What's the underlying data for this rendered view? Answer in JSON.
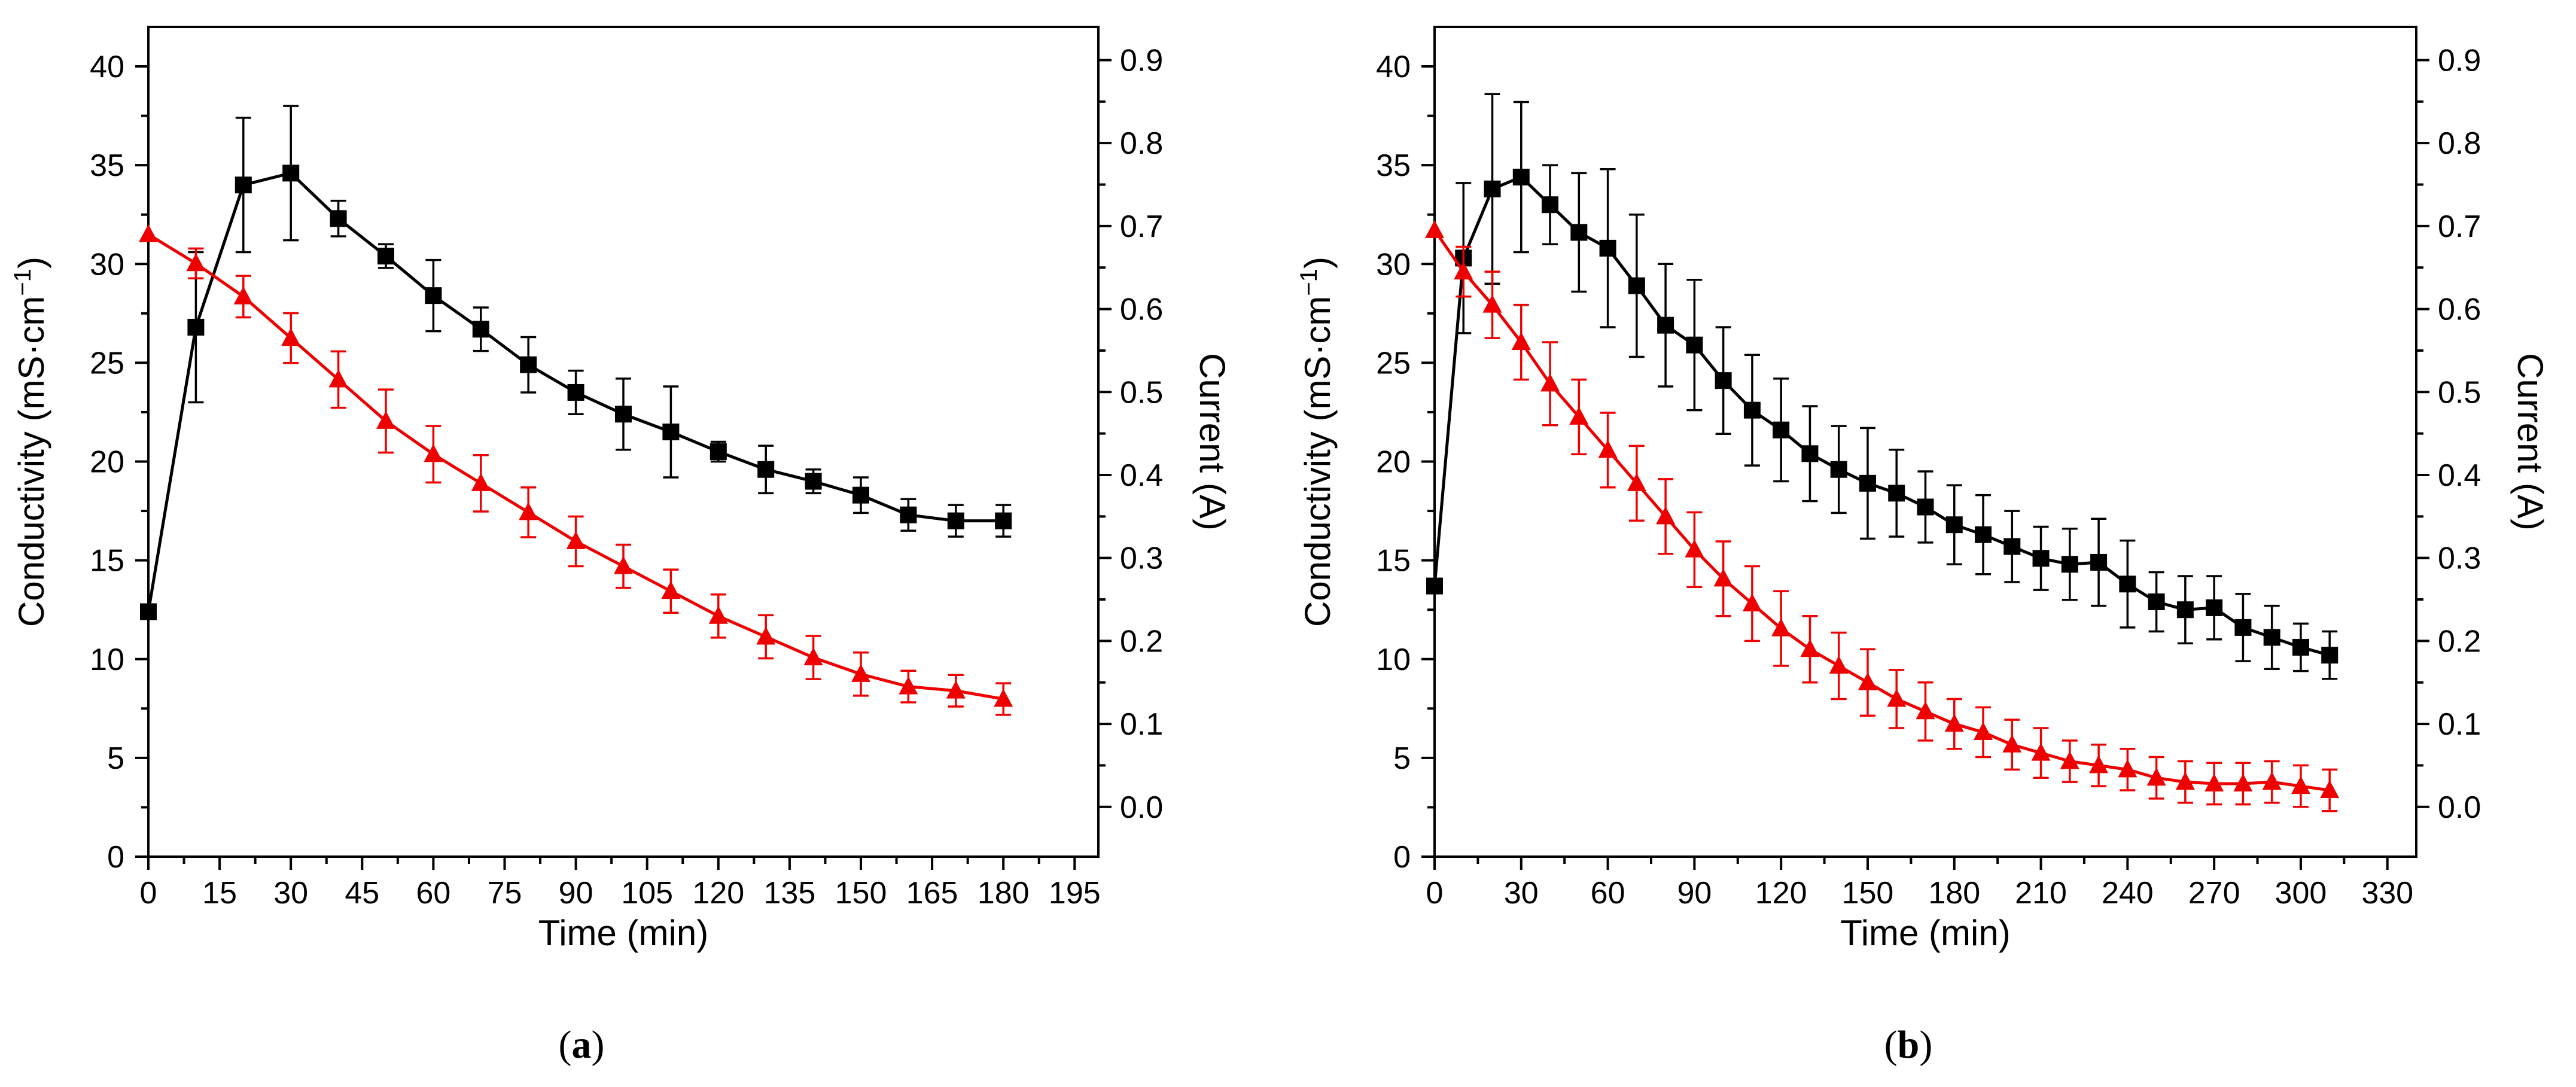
{
  "chart_data": [
    {
      "panel_label": "a",
      "type": "line",
      "xlabel": "Time (min)",
      "ylabel_left": "Conductivity (mS·cm",
      "ylabel_left_sup": "−1",
      "ylabel_left_end": ")",
      "ylabel_right": "Current (A)",
      "xlim": [
        0,
        200
      ],
      "xticks": [
        0,
        15,
        30,
        45,
        60,
        75,
        90,
        105,
        120,
        135,
        150,
        165,
        180,
        195
      ],
      "ylim_left": [
        0,
        42
      ],
      "yticks_left": [
        0,
        5,
        10,
        15,
        20,
        25,
        30,
        35,
        40
      ],
      "ylim_right": [
        -0.06,
        0.94
      ],
      "yticks_right": [
        0.0,
        0.1,
        0.2,
        0.3,
        0.4,
        0.5,
        0.6,
        0.7,
        0.8,
        0.9
      ],
      "series": [
        {
          "name": "Conductivity",
          "axis": "left",
          "color": "#000000",
          "marker": "square",
          "x": [
            0,
            10,
            20,
            30,
            40,
            50,
            60,
            70,
            80,
            90,
            100,
            110,
            120,
            130,
            140,
            150,
            160,
            170,
            180
          ],
          "y": [
            12.4,
            26.8,
            34.0,
            34.6,
            32.3,
            30.4,
            28.4,
            26.7,
            24.9,
            23.5,
            22.4,
            21.5,
            20.5,
            19.6,
            19.0,
            18.3,
            17.3,
            17.0,
            17.0
          ],
          "err": [
            0.0,
            3.8,
            3.4,
            3.4,
            0.9,
            0.6,
            1.8,
            1.1,
            1.4,
            1.1,
            1.8,
            2.3,
            0.5,
            1.2,
            0.6,
            0.9,
            0.8,
            0.8,
            0.8
          ]
        },
        {
          "name": "Current",
          "axis": "right",
          "color": "#ee0000",
          "marker": "triangle",
          "x": [
            0,
            10,
            20,
            30,
            40,
            50,
            60,
            70,
            80,
            90,
            100,
            110,
            120,
            130,
            140,
            150,
            160,
            170,
            180
          ],
          "y": [
            0.69,
            0.655,
            0.615,
            0.565,
            0.515,
            0.465,
            0.425,
            0.39,
            0.355,
            0.32,
            0.29,
            0.26,
            0.23,
            0.205,
            0.18,
            0.16,
            0.145,
            0.14,
            0.13
          ],
          "err": [
            0.0,
            0.018,
            0.025,
            0.03,
            0.034,
            0.038,
            0.034,
            0.034,
            0.03,
            0.03,
            0.026,
            0.026,
            0.026,
            0.026,
            0.026,
            0.026,
            0.019,
            0.019,
            0.019
          ]
        }
      ]
    },
    {
      "panel_label": "b",
      "type": "line",
      "xlabel": "Time (min)",
      "ylabel_left": "Conductivity (mS·cm",
      "ylabel_left_sup": "−1",
      "ylabel_left_end": ")",
      "ylabel_right": "Current (A)",
      "xlim": [
        0,
        340
      ],
      "xticks": [
        0,
        30,
        60,
        90,
        120,
        150,
        180,
        210,
        240,
        270,
        300,
        330
      ],
      "ylim_left": [
        0,
        42
      ],
      "yticks_left": [
        0,
        5,
        10,
        15,
        20,
        25,
        30,
        35,
        40
      ],
      "ylim_right": [
        -0.06,
        0.94
      ],
      "yticks_right": [
        0.0,
        0.1,
        0.2,
        0.3,
        0.4,
        0.5,
        0.6,
        0.7,
        0.8,
        0.9
      ],
      "series": [
        {
          "name": "Conductivity",
          "axis": "left",
          "color": "#000000",
          "marker": "square",
          "x": [
            0,
            10,
            20,
            30,
            40,
            50,
            60,
            70,
            80,
            90,
            100,
            110,
            120,
            130,
            140,
            150,
            160,
            170,
            180,
            190,
            200,
            210,
            220,
            230,
            240,
            250,
            260,
            270,
            280,
            290,
            300,
            310
          ],
          "y": [
            13.7,
            30.3,
            33.8,
            34.4,
            33.0,
            31.6,
            30.8,
            28.9,
            26.9,
            25.9,
            24.1,
            22.6,
            21.6,
            20.4,
            19.6,
            18.9,
            18.4,
            17.7,
            16.8,
            16.3,
            15.7,
            15.1,
            14.8,
            14.9,
            13.8,
            12.9,
            12.5,
            12.6,
            11.6,
            11.1,
            10.6,
            10.2
          ],
          "err": [
            0.0,
            3.8,
            4.8,
            3.8,
            2.0,
            3.0,
            4.0,
            3.6,
            3.1,
            3.3,
            2.7,
            2.8,
            2.6,
            2.4,
            2.2,
            2.8,
            2.2,
            1.8,
            2.0,
            2.0,
            1.8,
            1.6,
            1.8,
            2.2,
            2.2,
            1.5,
            1.7,
            1.6,
            1.7,
            1.6,
            1.2,
            1.2
          ]
        },
        {
          "name": "Current",
          "axis": "right",
          "color": "#ee0000",
          "marker": "triangle",
          "x": [
            0,
            10,
            20,
            30,
            40,
            50,
            60,
            70,
            80,
            90,
            100,
            110,
            120,
            130,
            140,
            150,
            160,
            170,
            180,
            190,
            200,
            210,
            220,
            230,
            240,
            250,
            260,
            270,
            280,
            290,
            300,
            310
          ],
          "y": [
            0.695,
            0.645,
            0.605,
            0.56,
            0.51,
            0.47,
            0.43,
            0.39,
            0.35,
            0.31,
            0.275,
            0.245,
            0.215,
            0.19,
            0.17,
            0.15,
            0.13,
            0.115,
            0.1,
            0.09,
            0.075,
            0.065,
            0.055,
            0.05,
            0.045,
            0.035,
            0.03,
            0.028,
            0.028,
            0.03,
            0.025,
            0.02
          ],
          "err": [
            0.0,
            0.03,
            0.04,
            0.045,
            0.05,
            0.045,
            0.045,
            0.045,
            0.045,
            0.045,
            0.045,
            0.045,
            0.045,
            0.04,
            0.04,
            0.04,
            0.035,
            0.035,
            0.03,
            0.03,
            0.03,
            0.03,
            0.025,
            0.025,
            0.025,
            0.025,
            0.025,
            0.025,
            0.025,
            0.025,
            0.025,
            0.025
          ]
        }
      ]
    }
  ],
  "captions": [
    {
      "open": "(",
      "label": "a",
      "close": ")"
    },
    {
      "open": "(",
      "label": "b",
      "close": ")"
    }
  ]
}
